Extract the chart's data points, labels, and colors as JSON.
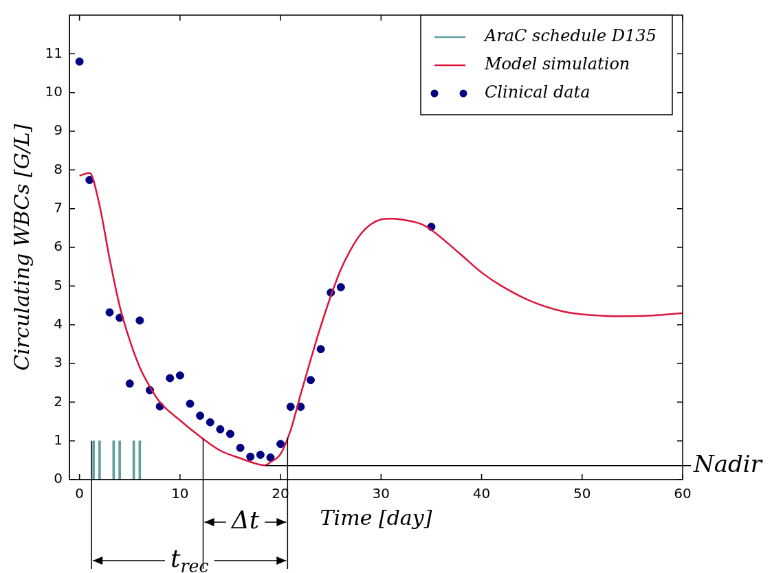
{
  "chart_data": {
    "type": "line",
    "xlabel": "Time [day]",
    "ylabel": "Circulating WBCs [G/L]",
    "xlim": [
      -1,
      60
    ],
    "xticks": [
      0,
      10,
      20,
      30,
      40,
      50,
      60
    ],
    "ylim": [
      0,
      12
    ],
    "yticks": [
      0,
      1,
      2,
      3,
      4,
      5,
      6,
      7,
      8,
      9,
      10,
      11
    ],
    "grid": false,
    "legend": "top right",
    "series": [
      {
        "name": "AraC schedule D135",
        "type": "bar",
        "color": "#5f9ea0",
        "x": [
          1.4,
          2,
          3.4,
          4,
          5.4,
          6
        ],
        "values": [
          1,
          1,
          1,
          1,
          1,
          1
        ]
      },
      {
        "name": "Model simulation",
        "color": "#dc143c",
        "x": [
          0,
          1,
          2,
          3,
          4,
          5,
          6,
          7,
          8,
          10,
          12,
          14,
          16,
          18,
          18.5,
          19,
          20,
          21,
          22,
          23,
          24,
          25,
          26,
          27,
          28,
          29,
          30,
          31,
          32,
          34,
          35,
          38,
          40,
          42,
          45,
          48,
          50,
          54,
          57,
          60
        ],
        "values": [
          7.85,
          7.92,
          7.08,
          5.7,
          4.48,
          3.6,
          2.9,
          2.4,
          2.0,
          1.53,
          1.11,
          0.75,
          0.55,
          0.38,
          0.37,
          0.45,
          0.66,
          1.27,
          2.2,
          3.1,
          3.96,
          4.74,
          5.43,
          5.95,
          6.35,
          6.6,
          6.72,
          6.74,
          6.72,
          6.6,
          6.45,
          5.8,
          5.35,
          5.0,
          4.6,
          4.35,
          4.27,
          4.22,
          4.24,
          4.3
        ]
      },
      {
        "name": "Clinical data",
        "type": "scatter",
        "marker": "circle",
        "color": "#000080",
        "x": [
          0,
          1,
          3,
          4,
          5,
          6,
          7,
          8,
          9,
          10,
          11,
          12,
          13,
          14,
          15,
          16,
          17,
          18,
          19,
          20,
          21,
          22,
          23,
          24,
          25,
          26,
          35
        ],
        "values": [
          10.8,
          7.74,
          4.32,
          4.18,
          2.48,
          4.11,
          2.31,
          1.89,
          2.62,
          2.69,
          1.96,
          1.65,
          1.48,
          1.3,
          1.18,
          0.82,
          0.59,
          0.64,
          0.57,
          0.92,
          1.88,
          1.88,
          2.57,
          3.37,
          4.83,
          4.97,
          6.53
        ]
      }
    ],
    "ref_lines": [
      {
        "axis": "y",
        "value": 0.36,
        "label": "Nadir",
        "color": "#000000"
      },
      {
        "axis": "x",
        "value": 12.3,
        "color": "#000000"
      },
      {
        "axis": "x",
        "value": 1.2,
        "color": "#000000"
      },
      {
        "axis": "x",
        "value": 20.7,
        "color": "#000000"
      }
    ],
    "annotations": [
      "Δt",
      "t$_{rec}$"
    ]
  }
}
